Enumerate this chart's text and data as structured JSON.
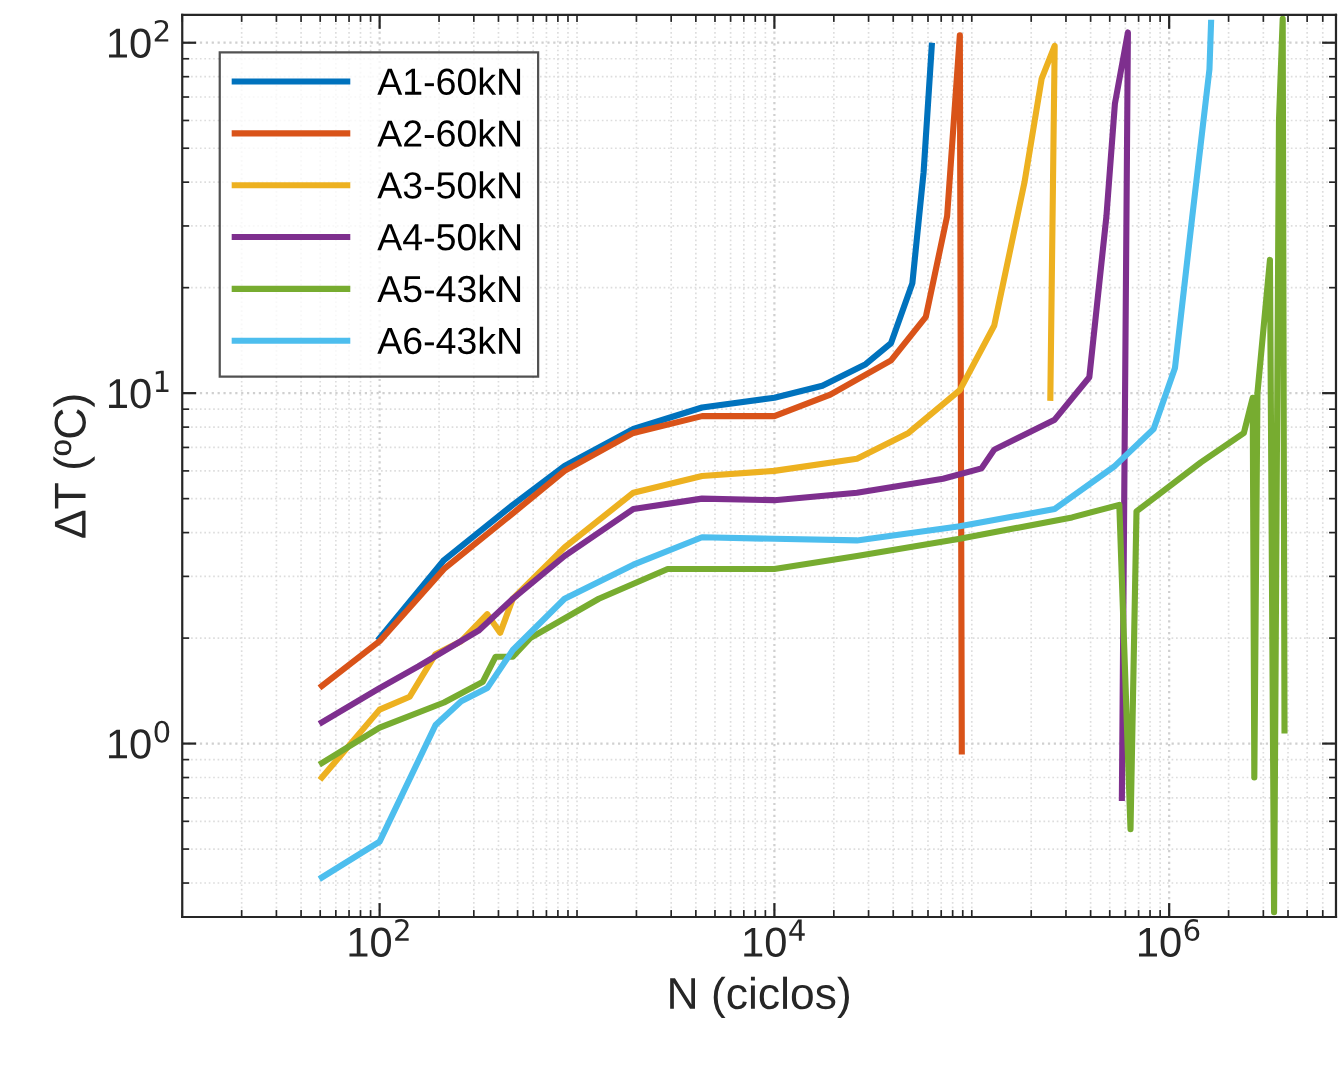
{
  "chart_data": {
    "type": "line",
    "xlabel": "N (ciclos)",
    "ylabel": "ΔT (ºC)",
    "log": "xy",
    "xlim": [
      10,
      7000000
    ],
    "ylim": [
      0.32,
      120
    ],
    "xticks": [
      {
        "value": 100,
        "label": "10$^{2}$"
      },
      {
        "value": 10000,
        "label": "10$^{4}$"
      },
      {
        "value": 1000000,
        "label": "10$^{6}$"
      }
    ],
    "yticks": [
      {
        "value": 1,
        "label": "10$^{0}$"
      },
      {
        "value": 10,
        "label": "10$^{1}$"
      },
      {
        "value": 100,
        "label": "10$^{2}$"
      }
    ],
    "grid": true,
    "legend": "top left",
    "line_style": "solid",
    "series": [
      {
        "name": "A1-60kN",
        "color": "#0072bd",
        "x": [
          100,
          212,
          473,
          865,
          1930,
          4300,
          10000,
          17500,
          29000,
          39000,
          50000,
          57000,
          62700
        ],
        "values": [
          2.0,
          3.34,
          4.8,
          6.2,
          7.9,
          9.1,
          9.7,
          10.5,
          12.1,
          13.9,
          20.6,
          42.7,
          98
        ]
      },
      {
        "name": "A2-60kN",
        "color": "#d95319",
        "x": [
          51,
          100,
          212,
          473,
          865,
          1930,
          4300,
          10000,
          19200,
          39000,
          58500,
          75000,
          87000,
          89000
        ],
        "values": [
          1.46,
          1.96,
          3.15,
          4.54,
          6.0,
          7.7,
          8.6,
          8.6,
          9.9,
          12.4,
          16.5,
          32,
          105,
          0.95
        ]
      },
      {
        "name": "A3-50kN",
        "color": "#edb120",
        "x": [
          51,
          100,
          142,
          192,
          259,
          351,
          408,
          473,
          865,
          1930,
          4300,
          10000,
          26200,
          47800,
          87000,
          130000,
          185000,
          226000,
          263000,
          250000
        ],
        "values": [
          0.8,
          1.25,
          1.36,
          1.8,
          1.96,
          2.34,
          2.07,
          2.59,
          3.63,
          5.2,
          5.8,
          6.0,
          6.5,
          7.7,
          10.2,
          15.6,
          40,
          79,
          98,
          9.7
        ]
      },
      {
        "name": "A4-50kN",
        "color": "#7e2f8e",
        "x": [
          51,
          100,
          157,
          317,
          473,
          865,
          1930,
          4300,
          10000,
          26200,
          71500,
          112000,
          130000,
          263000,
          394000,
          481000,
          531000,
          618000,
          576000
        ],
        "values": [
          1.15,
          1.44,
          1.66,
          2.1,
          2.59,
          3.43,
          4.67,
          5.0,
          4.95,
          5.2,
          5.7,
          6.1,
          6.9,
          8.4,
          11.1,
          32,
          67,
          107,
          0.7
        ]
      },
      {
        "name": "A5-43kN",
        "color": "#77ac30",
        "x": [
          51,
          100,
          212,
          333,
          387,
          473,
          579,
          1290,
          2880,
          10000,
          26200,
          87000,
          322000,
          559000,
          637000,
          683000,
          1450000,
          2390000,
          2650000,
          2700000,
          2800000,
          3240000,
          3400000,
          3600000,
          3760000,
          3840000
        ],
        "values": [
          0.88,
          1.11,
          1.31,
          1.5,
          1.77,
          1.77,
          2.0,
          2.59,
          3.15,
          3.15,
          3.43,
          3.84,
          4.42,
          4.8,
          0.57,
          4.6,
          6.35,
          7.7,
          9.7,
          0.8,
          10,
          24,
          0.33,
          60,
          117,
          1.09
        ]
      },
      {
        "name": "A6-43kN",
        "color": "#4dbeee",
        "x": [
          51,
          100,
          192,
          259,
          351,
          473,
          865,
          1930,
          4300,
          10000,
          26200,
          87000,
          263000,
          531000,
          834000,
          1070000,
          1310000,
          1600000,
          1630000
        ],
        "values": [
          0.415,
          0.525,
          1.13,
          1.32,
          1.44,
          1.85,
          2.59,
          3.24,
          3.88,
          3.84,
          3.8,
          4.17,
          4.67,
          6.2,
          7.9,
          11.8,
          32,
          84,
          114
        ]
      }
    ]
  }
}
